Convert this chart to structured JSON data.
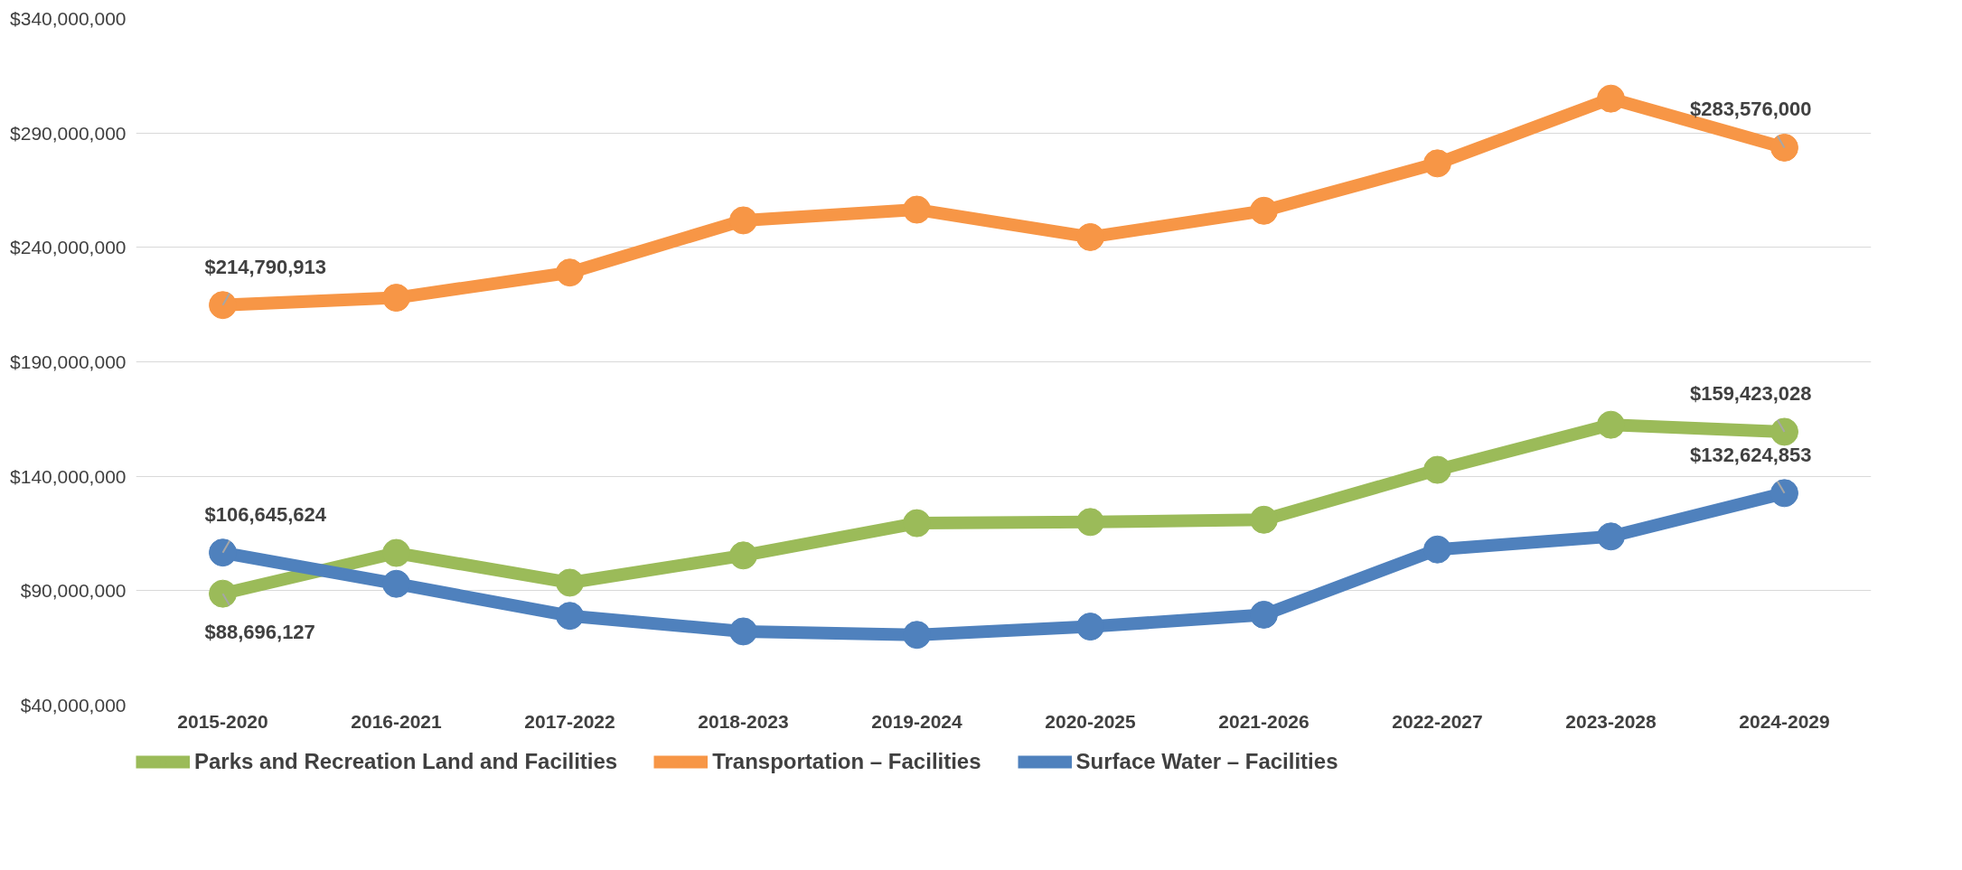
{
  "chart_data": {
    "type": "line",
    "categories": [
      "2015-2020",
      "2016-2021",
      "2017-2022",
      "2018-2023",
      "2019-2024",
      "2020-2025",
      "2021-2026",
      "2022-2027",
      "2023-2028",
      "2024-2029"
    ],
    "series": [
      {
        "name": "Parks and Recreation Land and Facilities",
        "color": "#9bbb59",
        "values": [
          88696127,
          106500000,
          93500000,
          105400000,
          119500000,
          120000000,
          121000000,
          142800000,
          162500000,
          159423028
        ],
        "value_labels": [
          "$88,696,127",
          null,
          null,
          null,
          null,
          null,
          null,
          null,
          null,
          "$159,423,028"
        ]
      },
      {
        "name": "Transportation – Facilities",
        "color": "#f79646",
        "values": [
          214790913,
          218000000,
          229000000,
          251800000,
          256500000,
          244500000,
          256000000,
          276700000,
          305000000,
          283576000
        ],
        "value_labels": [
          "$214,790,913",
          null,
          null,
          null,
          null,
          null,
          null,
          null,
          null,
          "$283,576,000"
        ]
      },
      {
        "name": "Surface Water – Facilities",
        "color": "#4f81bd",
        "values": [
          106645624,
          93000000,
          79000000,
          72200000,
          70700000,
          74300000,
          79500000,
          108000000,
          113700000,
          132624853
        ],
        "value_labels": [
          "$106,645,624",
          null,
          null,
          null,
          null,
          null,
          null,
          null,
          null,
          "$132,624,853"
        ]
      }
    ],
    "ylim": [
      40000000,
      340000000
    ],
    "yticks": [
      {
        "value": 40000000,
        "label": "$40,000,000"
      },
      {
        "value": 90000000,
        "label": "$90,000,000"
      },
      {
        "value": 140000000,
        "label": "$140,000,000"
      },
      {
        "value": 190000000,
        "label": "$190,000,000"
      },
      {
        "value": 240000000,
        "label": "$240,000,000"
      },
      {
        "value": 290000000,
        "label": "$290,000,000"
      },
      {
        "value": 340000000,
        "label": "$340,000,000"
      }
    ],
    "grid": "y",
    "legend": "bottom",
    "marker": "circle",
    "line_style": "solid"
  }
}
